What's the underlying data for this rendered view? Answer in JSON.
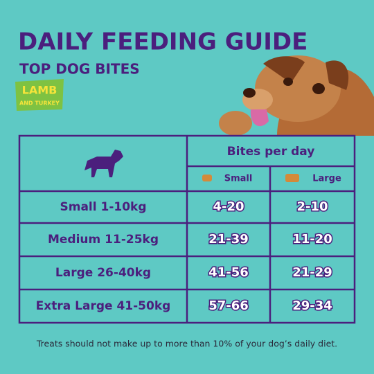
{
  "header": {
    "title": "DAILY FEEDING GUIDE",
    "subtitle": "TOP DOG BITES"
  },
  "badge": {
    "line1": "LAMB",
    "line2": "AND TURKEY"
  },
  "table": {
    "group_header": "Bites per day",
    "columns": [
      "Small",
      "Large"
    ],
    "rows": [
      [
        "Small 1-10kg",
        "4-20",
        "2-10"
      ],
      [
        "Medium 11-25kg",
        "21-39",
        "11-20"
      ],
      [
        "Large 26-40kg",
        "41-56",
        "21-29"
      ],
      [
        "Extra Large 41-50kg",
        "57-66",
        "29-34"
      ]
    ]
  },
  "footnote": "Treats should not make up to more than 10% of your dog’s daily diet."
}
